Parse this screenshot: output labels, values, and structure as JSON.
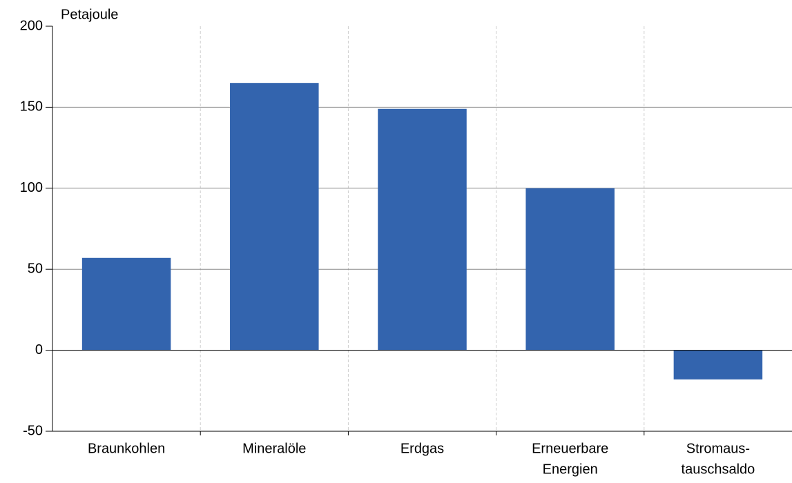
{
  "chart_data": {
    "type": "bar",
    "y_label": "Petajoule",
    "categories": [
      [
        "Braunkohlen"
      ],
      [
        "Mineralöle"
      ],
      [
        "Erdgas"
      ],
      [
        "Erneuerbare",
        "Energien"
      ],
      [
        "Stromaus-",
        "tauschsaldo"
      ]
    ],
    "values": [
      57,
      165,
      149,
      100,
      -18
    ],
    "color": "#3364ae",
    "ylim": [
      -50,
      200
    ],
    "yticks": [
      -50,
      0,
      50,
      100,
      150,
      200
    ],
    "grid": true
  }
}
